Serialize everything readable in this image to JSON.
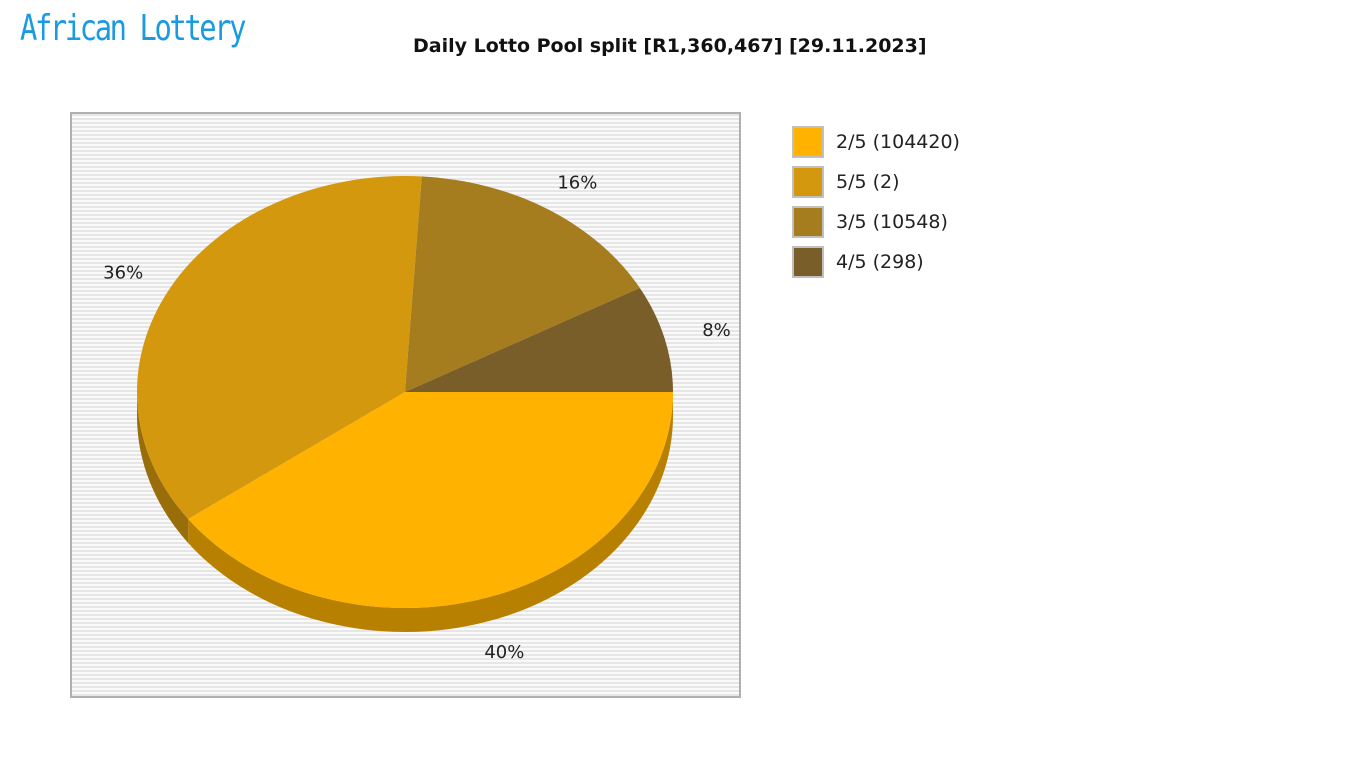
{
  "logo": {
    "text": "African Lottery"
  },
  "chart_data": {
    "type": "pie",
    "title": "Daily Lotto Pool split [R1,360,467] [29.11.2023]",
    "slices": [
      {
        "label": "2/5 (104420)",
        "percent": 40,
        "color": "#FFB300"
      },
      {
        "label": "5/5 (2)",
        "percent": 36,
        "color": "#D4980E"
      },
      {
        "label": "3/5 (10548)",
        "percent": 16,
        "color": "#A57C1E"
      },
      {
        "label": "4/5 (298)",
        "percent": 8,
        "color": "#7A5E2A"
      }
    ],
    "data_labels": [
      "40%",
      "36%",
      "16%",
      "8%"
    ],
    "legend": "right"
  }
}
